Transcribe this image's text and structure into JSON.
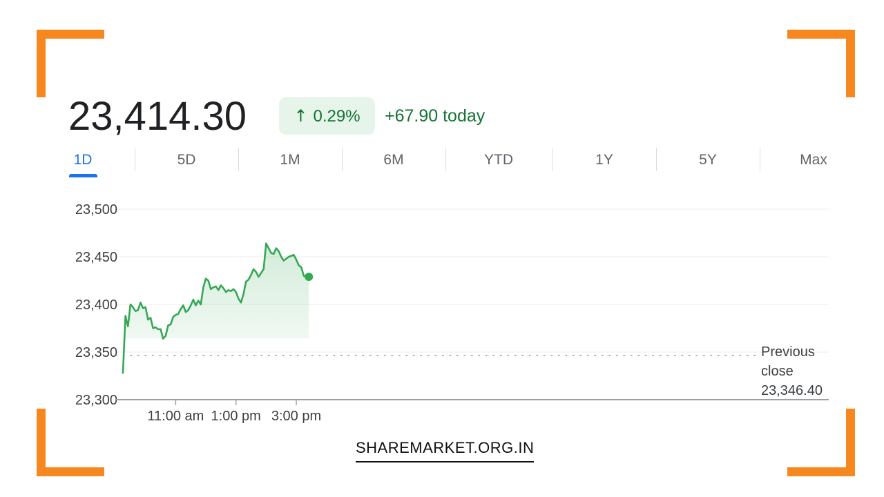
{
  "colors": {
    "corner_accent": "#f7871f",
    "up_green": "#34a853",
    "tab_active": "#1a73e8"
  },
  "quote": {
    "price": "23,414.30",
    "change_percent": "0.29%",
    "change_arrow_icon": "arrow-up-icon",
    "change_today": "+67.90 today"
  },
  "tabs": [
    {
      "label": "1D",
      "active": true
    },
    {
      "label": "5D",
      "active": false
    },
    {
      "label": "1M",
      "active": false
    },
    {
      "label": "6M",
      "active": false
    },
    {
      "label": "YTD",
      "active": false
    },
    {
      "label": "1Y",
      "active": false
    },
    {
      "label": "5Y",
      "active": false
    },
    {
      "label": "Max",
      "active": false
    }
  ],
  "chart_data": {
    "type": "area",
    "title": "",
    "xlabel": "",
    "ylabel": "",
    "ylim": [
      23300,
      23500
    ],
    "yticks": [
      "23,500",
      "23,450",
      "23,400",
      "23,350",
      "23,300"
    ],
    "ytick_values": [
      23500,
      23450,
      23400,
      23350,
      23300
    ],
    "xticks": [
      {
        "label": "11:00 am",
        "time": "11:00"
      },
      {
        "label": "1:00 pm",
        "time": "13:00"
      },
      {
        "label": "3:00 pm",
        "time": "15:00"
      }
    ],
    "xlim": [
      "09:15",
      "15:30"
    ],
    "grid": true,
    "reference_line": {
      "label_lines": [
        "Previous",
        "close",
        "23,346.40"
      ],
      "value": 23346.4
    },
    "series": [
      {
        "times": [
          "09:15",
          "09:20",
          "09:25",
          "09:30",
          "09:35",
          "09:40",
          "09:45",
          "09:50",
          "09:55",
          "10:00",
          "10:05",
          "10:10",
          "10:15",
          "10:20",
          "10:25",
          "10:30",
          "10:35",
          "10:40",
          "10:45",
          "10:50",
          "10:55",
          "11:00",
          "11:05",
          "11:10",
          "11:15",
          "11:20",
          "11:25",
          "11:30",
          "11:35",
          "11:40",
          "11:45",
          "11:50",
          "11:55",
          "12:00",
          "12:05",
          "12:10",
          "12:15",
          "12:20",
          "12:25",
          "12:30",
          "12:35",
          "12:40",
          "12:45",
          "12:50",
          "12:55",
          "13:00",
          "13:05",
          "13:10",
          "13:15",
          "13:20",
          "13:25",
          "13:30",
          "13:35",
          "13:40",
          "13:45",
          "13:50",
          "13:55",
          "14:00",
          "14:05",
          "14:10",
          "14:15",
          "14:20",
          "14:25",
          "14:30",
          "14:35",
          "14:40",
          "14:45",
          "14:50",
          "14:55",
          "15:00",
          "15:05",
          "15:10",
          "15:15",
          "15:20",
          "15:25"
        ],
        "values": [
          23328,
          23388,
          23377,
          23400,
          23397,
          23393,
          23394,
          23402,
          23396,
          23397,
          23384,
          23386,
          23375,
          23376,
          23374,
          23374,
          23364,
          23367,
          23378,
          23379,
          23387,
          23389,
          23390,
          23395,
          23399,
          23392,
          23394,
          23399,
          23405,
          23399,
          23404,
          23400,
          23418,
          23427,
          23425,
          23416,
          23418,
          23419,
          23415,
          23420,
          23417,
          23413,
          23415,
          23414,
          23416,
          23413,
          23406,
          23402,
          23411,
          23424,
          23426,
          23431,
          23437,
          23434,
          23429,
          23433,
          23437,
          23464,
          23459,
          23454,
          23453,
          23459,
          23456,
          23450,
          23446,
          23448,
          23450,
          23451,
          23452,
          23447,
          23441,
          23439,
          23430,
          23429,
          23429
        ]
      }
    ]
  },
  "footer": {
    "site": "SHAREMARKET.ORG.IN"
  }
}
